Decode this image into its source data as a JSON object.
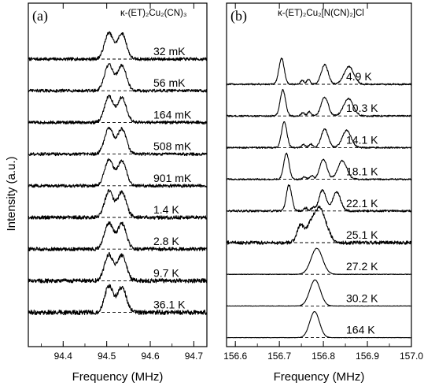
{
  "chart_data": [
    {
      "type": "line",
      "panel_label": "(a)",
      "compound_label": "κ-(ET)₂Cu₂(CN)₃",
      "xlabel": "Frequency (MHz)",
      "ylabel": "Intensity (a.u.)",
      "xlim": [
        94.32,
        94.73
      ],
      "xticks": [
        "94.4",
        "94.5",
        "94.6",
        "94.7"
      ],
      "xtick_values": [
        94.4,
        94.5,
        94.6,
        94.7
      ],
      "grid": false,
      "baselines": "dashed",
      "peak_positions": [
        94.505,
        94.535
      ],
      "series": [
        {
          "label": "32 mK",
          "peaks": [
            94.505,
            94.535
          ],
          "widths": [
            0.01,
            0.01
          ],
          "heights": [
            1.0,
            0.98
          ],
          "noise": 0.06
        },
        {
          "label": "56 mK",
          "peaks": [
            94.505,
            94.535
          ],
          "widths": [
            0.01,
            0.01
          ],
          "heights": [
            1.0,
            0.97
          ],
          "noise": 0.06
        },
        {
          "label": "164 mK",
          "peaks": [
            94.505,
            94.535
          ],
          "widths": [
            0.01,
            0.01
          ],
          "heights": [
            1.0,
            0.96
          ],
          "noise": 0.06
        },
        {
          "label": "508 mK",
          "peaks": [
            94.505,
            94.535
          ],
          "widths": [
            0.01,
            0.01
          ],
          "heights": [
            1.0,
            0.97
          ],
          "noise": 0.06
        },
        {
          "label": "901 mK",
          "peaks": [
            94.505,
            94.535
          ],
          "widths": [
            0.01,
            0.01
          ],
          "heights": [
            1.0,
            0.96
          ],
          "noise": 0.06
        },
        {
          "label": "1.4 K",
          "peaks": [
            94.505,
            94.535
          ],
          "widths": [
            0.01,
            0.01
          ],
          "heights": [
            1.0,
            0.97
          ],
          "noise": 0.07
        },
        {
          "label": "2.8 K",
          "peaks": [
            94.505,
            94.535
          ],
          "widths": [
            0.01,
            0.01
          ],
          "heights": [
            1.0,
            0.98
          ],
          "noise": 0.07
        },
        {
          "label": "9.7 K",
          "peaks": [
            94.505,
            94.535
          ],
          "widths": [
            0.01,
            0.01
          ],
          "heights": [
            1.0,
            0.97
          ],
          "noise": 0.08
        },
        {
          "label": "36.1 K",
          "peaks": [
            94.505,
            94.535
          ],
          "widths": [
            0.01,
            0.01
          ],
          "heights": [
            1.0,
            0.97
          ],
          "noise": 0.09
        }
      ]
    },
    {
      "type": "line",
      "panel_label": "(b)",
      "compound_label": "κ-(ET)₂Cu₂[N(CN)₂]Cl",
      "xlabel": "Frequency (MHz)",
      "ylabel": "",
      "xlim": [
        156.58,
        157.0
      ],
      "xticks": [
        "156.6",
        "156.7",
        "156.8",
        "156.9",
        "157.0"
      ],
      "xtick_values": [
        156.6,
        156.7,
        156.8,
        156.9,
        157.0
      ],
      "grid": false,
      "baselines": "dashed",
      "series": [
        {
          "label": "4.9 K",
          "peaks": [
            156.705,
            156.752,
            156.766,
            156.803,
            156.858
          ],
          "widths": [
            0.006,
            0.004,
            0.004,
            0.008,
            0.011
          ],
          "heights": [
            1.0,
            0.15,
            0.18,
            0.75,
            0.68
          ],
          "noise": 0.03
        },
        {
          "label": "10.3 K",
          "peaks": [
            156.708,
            156.753,
            156.768,
            156.803,
            156.857
          ],
          "widths": [
            0.006,
            0.004,
            0.004,
            0.008,
            0.011
          ],
          "heights": [
            1.0,
            0.12,
            0.16,
            0.72,
            0.66
          ],
          "noise": 0.03
        },
        {
          "label": "14.1 K",
          "peaks": [
            156.711,
            156.755,
            156.771,
            156.803,
            156.853
          ],
          "widths": [
            0.006,
            0.004,
            0.004,
            0.008,
            0.01
          ],
          "heights": [
            1.0,
            0.12,
            0.14,
            0.72,
            0.66
          ],
          "noise": 0.03
        },
        {
          "label": "18.1 K",
          "peaks": [
            156.716,
            156.757,
            156.773,
            156.8,
            156.843
          ],
          "widths": [
            0.006,
            0.004,
            0.004,
            0.008,
            0.01
          ],
          "heights": [
            1.0,
            0.1,
            0.14,
            0.78,
            0.72
          ],
          "noise": 0.03
        },
        {
          "label": "22.1 K",
          "peaks": [
            156.722,
            156.76,
            156.776,
            156.798,
            156.83
          ],
          "widths": [
            0.006,
            0.004,
            0.004,
            0.008,
            0.009
          ],
          "heights": [
            1.0,
            0.12,
            0.12,
            0.8,
            0.72
          ],
          "noise": 0.04
        },
        {
          "label": "25.1 K",
          "peaks": [
            156.748,
            156.772,
            156.79,
            156.802
          ],
          "widths": [
            0.008,
            0.01,
            0.01,
            0.012
          ],
          "heights": [
            0.65,
            0.7,
            0.85,
            0.6
          ],
          "noise": 0.07
        },
        {
          "label": "27.2 K",
          "peaks": [
            156.785
          ],
          "widths": [
            0.013
          ],
          "heights": [
            1.0
          ],
          "noise": 0.01
        },
        {
          "label": "30.2 K",
          "peaks": [
            156.781
          ],
          "widths": [
            0.012
          ],
          "heights": [
            1.0
          ],
          "noise": 0.008
        },
        {
          "label": "164 K",
          "peaks": [
            156.78
          ],
          "widths": [
            0.011
          ],
          "heights": [
            1.0
          ],
          "noise": 0.006
        }
      ]
    }
  ]
}
